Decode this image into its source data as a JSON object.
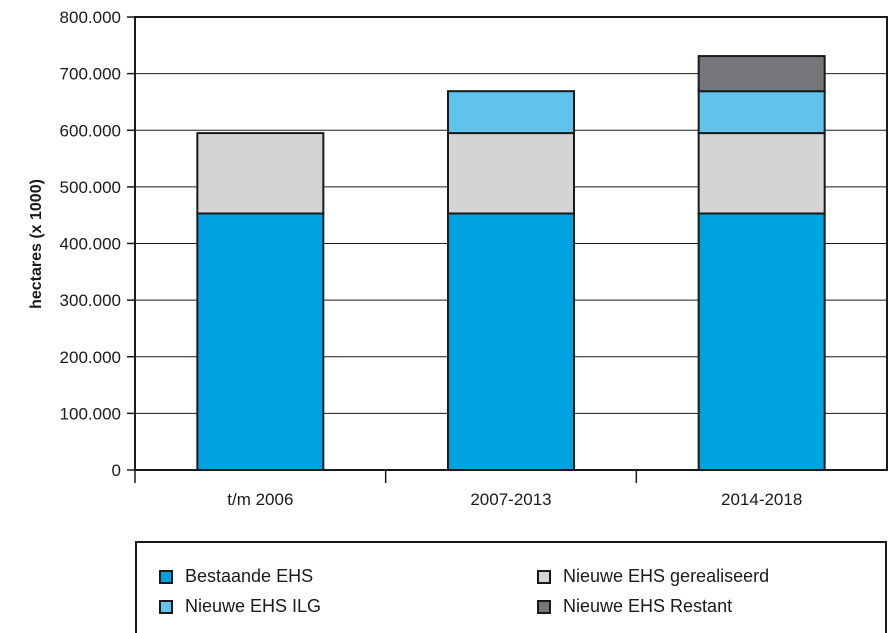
{
  "chart_data": {
    "type": "bar",
    "stacked": true,
    "ylabel": "hectares (x 1000)",
    "ylim": [
      0,
      800000
    ],
    "yticks": [
      "0",
      "100.000",
      "200.000",
      "300.000",
      "400.000",
      "500.000",
      "600.000",
      "700.000",
      "800.000"
    ],
    "categories": [
      "t/m 2006",
      "2007-2013",
      "2014-2018"
    ],
    "series": [
      {
        "name": "Bestaande EHS",
        "color": "#00a3e0",
        "values": [
          453000,
          453000,
          453000
        ]
      },
      {
        "name": "Nieuwe EHS gerealiseerd",
        "color": "#d3d4d6",
        "values": [
          142000,
          142000,
          142000
        ]
      },
      {
        "name": "Nieuwe EHS ILG",
        "color": "#5fc3ec",
        "values": [
          0,
          74000,
          74000
        ]
      },
      {
        "name": "Nieuwe EHS Restant",
        "color": "#76777a",
        "values": [
          0,
          0,
          62000
        ]
      }
    ],
    "grid": true,
    "legend_position": "bottom"
  }
}
